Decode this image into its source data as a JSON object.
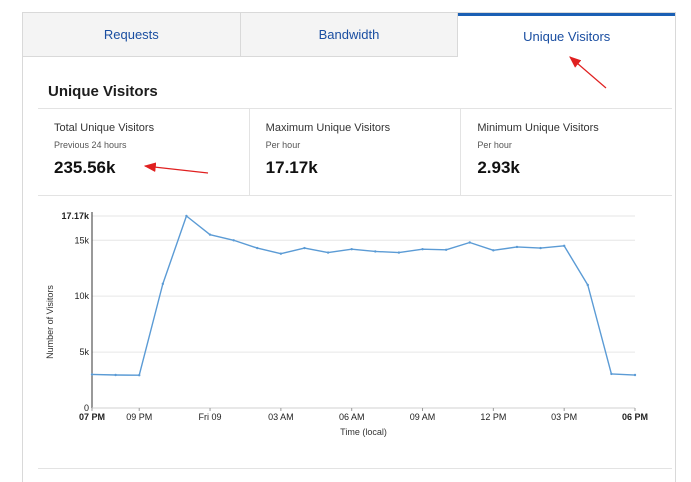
{
  "tabs": [
    {
      "label": "Requests",
      "active": false
    },
    {
      "label": "Bandwidth",
      "active": false
    },
    {
      "label": "Unique Visitors",
      "active": true
    }
  ],
  "section": {
    "title": "Unique Visitors"
  },
  "stats": [
    {
      "label": "Total Unique Visitors",
      "sub": "Previous 24 hours",
      "value": "235.56k"
    },
    {
      "label": "Maximum Unique Visitors",
      "sub": "Per hour",
      "value": "17.17k"
    },
    {
      "label": "Minimum Unique Visitors",
      "sub": "Per hour",
      "value": "2.93k"
    }
  ],
  "colors": {
    "accent": "#1a5fb4",
    "tab_text": "#1a4ea1",
    "line": "#5b9bd5",
    "annotation_arrow": "#e02020"
  },
  "chart_data": {
    "type": "line",
    "title": "",
    "xlabel": "Time (local)",
    "ylabel": "Number of Visitors",
    "ylim": [
      0,
      17170
    ],
    "grid": true,
    "x_ticks": [
      {
        "label": "07 PM",
        "hour": 0,
        "bold": true
      },
      {
        "label": "09 PM",
        "hour": 2,
        "bold": false
      },
      {
        "label": "Fri 09",
        "hour": 5,
        "bold": false
      },
      {
        "label": "03 AM",
        "hour": 8,
        "bold": false
      },
      {
        "label": "06 AM",
        "hour": 11,
        "bold": false
      },
      {
        "label": "09 AM",
        "hour": 14,
        "bold": false
      },
      {
        "label": "12 PM",
        "hour": 17,
        "bold": false
      },
      {
        "label": "03 PM",
        "hour": 20,
        "bold": false
      },
      {
        "label": "06 PM",
        "hour": 23,
        "bold": true
      }
    ],
    "y_ticks": [
      {
        "label": "0",
        "value": 0,
        "bold": false
      },
      {
        "label": "5k",
        "value": 5000,
        "bold": false
      },
      {
        "label": "10k",
        "value": 10000,
        "bold": false
      },
      {
        "label": "15k",
        "value": 15000,
        "bold": false
      },
      {
        "label": "17.17k",
        "value": 17170,
        "bold": true
      }
    ],
    "series": [
      {
        "name": "Unique Visitors",
        "x": [
          0,
          1,
          2,
          3,
          4,
          5,
          6,
          7,
          8,
          9,
          10,
          11,
          12,
          13,
          14,
          15,
          16,
          17,
          18,
          19,
          20,
          21,
          22,
          23
        ],
        "values": [
          3000,
          2950,
          2930,
          11100,
          17170,
          15500,
          15000,
          14300,
          13800,
          14300,
          13900,
          14200,
          14000,
          13900,
          14200,
          14150,
          14800,
          14100,
          14400,
          14300,
          14500,
          11000,
          3050,
          2950
        ]
      }
    ]
  }
}
